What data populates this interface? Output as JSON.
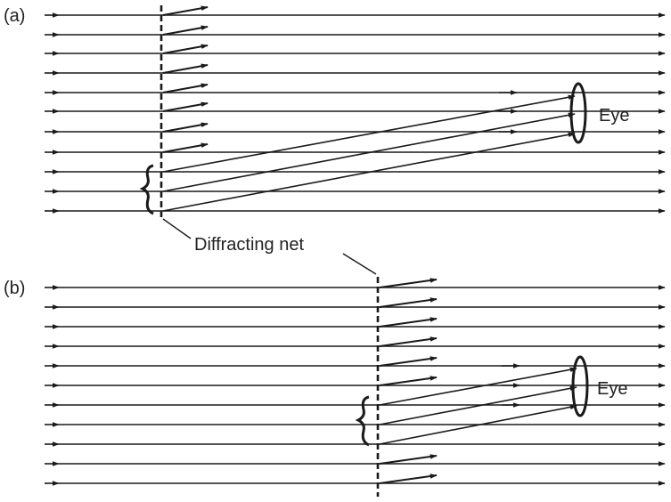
{
  "panels": [
    {
      "label": "(a)",
      "eye_label": "Eye"
    },
    {
      "label": "(b)",
      "eye_label": "Eye"
    }
  ],
  "net_label": "Diffracting net",
  "colors": {
    "ink": "#1a1a1a",
    "background": "#ffffff"
  }
}
